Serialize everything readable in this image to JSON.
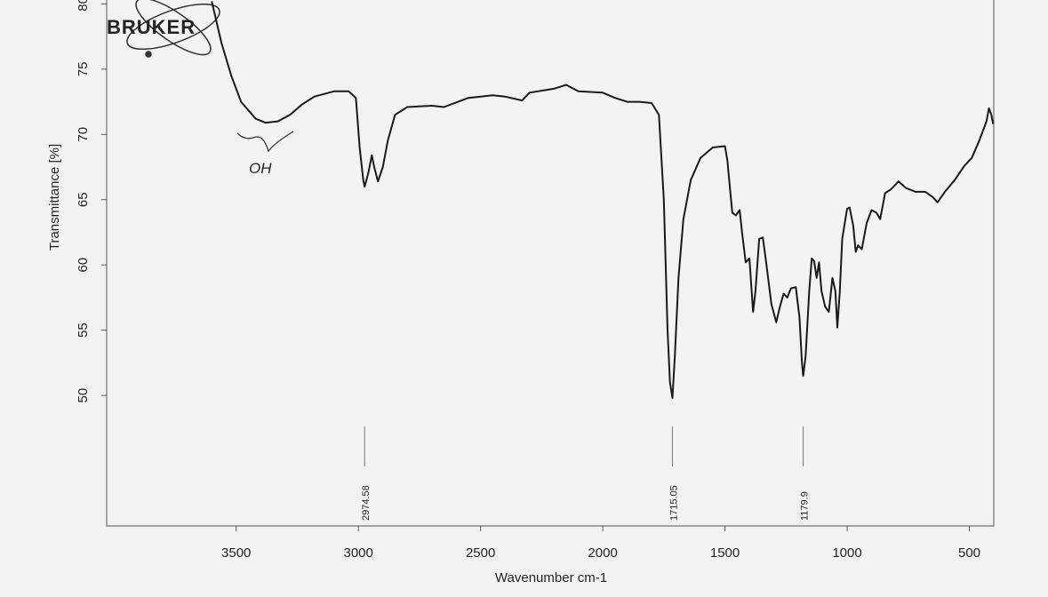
{
  "chart_data": {
    "type": "line",
    "logo": "BRUKER",
    "annotation": "OH",
    "xlabel": "Wavenumber cm-1",
    "ylabel": "Transmittance [%]",
    "xlim": [
      4030,
      400
    ],
    "ylim": [
      40,
      80.3
    ],
    "xticks": [
      3500,
      3000,
      2500,
      2000,
      1500,
      1000,
      500
    ],
    "yticks": [
      50,
      55,
      60,
      65,
      70,
      75,
      80
    ],
    "peaks": [
      2974.58,
      1715.05,
      1179.9
    ],
    "x": [
      3600,
      3560,
      3520,
      3480,
      3420,
      3380,
      3330,
      3280,
      3230,
      3180,
      3100,
      3040,
      3010,
      2995,
      2980,
      2974.58,
      2960,
      2945,
      2935,
      2920,
      2900,
      2880,
      2850,
      2800,
      2700,
      2650,
      2550,
      2450,
      2400,
      2330,
      2300,
      2200,
      2150,
      2100,
      2000,
      1950,
      1900,
      1850,
      1800,
      1770,
      1750,
      1735,
      1725,
      1715.05,
      1705,
      1690,
      1670,
      1640,
      1600,
      1550,
      1500,
      1490,
      1470,
      1455,
      1440,
      1430,
      1415,
      1400,
      1385,
      1375,
      1360,
      1345,
      1330,
      1310,
      1290,
      1275,
      1260,
      1245,
      1230,
      1210,
      1195,
      1185,
      1179.9,
      1170,
      1155,
      1145,
      1135,
      1125,
      1115,
      1105,
      1090,
      1075,
      1060,
      1048,
      1040,
      1030,
      1020,
      1000,
      990,
      975,
      965,
      955,
      940,
      920,
      900,
      880,
      865,
      845,
      820,
      790,
      760,
      720,
      680,
      650,
      630,
      600,
      560,
      520,
      490,
      460,
      430,
      420,
      410,
      403
    ],
    "series": [
      {
        "name": "Transmittance",
        "color": "#1a1a1a",
        "values": [
          80.2,
          77,
          74.5,
          72.5,
          71.2,
          70.9,
          71,
          71.5,
          72.3,
          72.9,
          73.3,
          73.3,
          72.8,
          69,
          66.5,
          66,
          67,
          68.4,
          67.5,
          66.4,
          67.5,
          69.5,
          71.5,
          72.1,
          72.2,
          72.1,
          72.8,
          73,
          72.9,
          72.6,
          73.2,
          73.5,
          73.8,
          73.3,
          73.2,
          72.8,
          72.5,
          72.5,
          72.4,
          71.5,
          65,
          55,
          51,
          49.8,
          53,
          59,
          63.5,
          66.5,
          68.2,
          69,
          69.1,
          68,
          64,
          63.8,
          64.2,
          62.5,
          60.2,
          60.5,
          56.4,
          58,
          62,
          62.1,
          60,
          57,
          55.6,
          56.8,
          57.8,
          57.5,
          58.2,
          58.3,
          56,
          52.5,
          51.5,
          53,
          58,
          60.5,
          60.3,
          59,
          60.2,
          58,
          56.8,
          56.4,
          59,
          58,
          55.2,
          58,
          62,
          64.3,
          64.4,
          63,
          61,
          61.5,
          61.2,
          63.2,
          64.2,
          64,
          63.5,
          65.5,
          65.8,
          66.4,
          65.9,
          65.6,
          65.6,
          65.2,
          64.8,
          65.6,
          66.5,
          67.6,
          68.2,
          69.5,
          71,
          72,
          71.5,
          70.8
        ]
      }
    ]
  }
}
